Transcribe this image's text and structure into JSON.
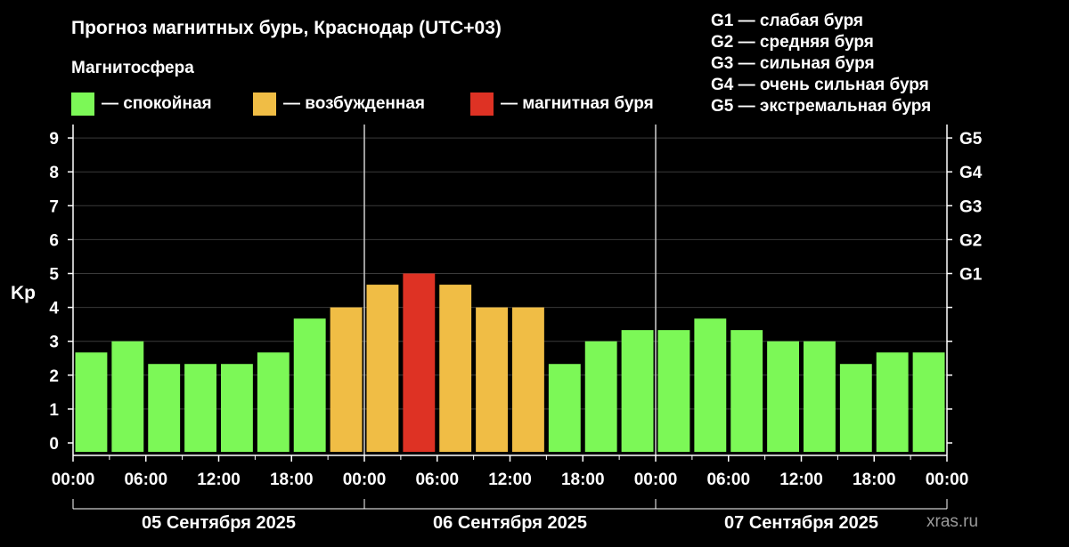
{
  "title": "Прогноз магнитных бурь, Краснодар (UTC+03)",
  "magnetosphere": {
    "title": "Магнитосфера",
    "legend": [
      {
        "label": "— спокойная",
        "color": "#7CF857"
      },
      {
        "label": "— возбужденная",
        "color": "#F0BD45"
      },
      {
        "label": "— магнитная буря",
        "color": "#DE3224"
      }
    ]
  },
  "storm_levels": [
    "G1 — слабая буря",
    "G2 — средняя буря",
    "G3 — сильная буря",
    "G4 — очень сильная буря",
    "G5 — экстремальная буря"
  ],
  "watermark": "xras.ru",
  "chart_data": {
    "type": "bar",
    "ylabel": "Kp",
    "ylim": [
      0,
      9
    ],
    "y_ticks": [
      "0",
      "1",
      "2",
      "3",
      "4",
      "5",
      "6",
      "7",
      "8",
      "9"
    ],
    "right_ticks": [
      {
        "label": "G1",
        "value": 5
      },
      {
        "label": "G2",
        "value": 6
      },
      {
        "label": "G3",
        "value": 7
      },
      {
        "label": "G4",
        "value": 8
      },
      {
        "label": "G5",
        "value": 9
      }
    ],
    "x_tick_labels": [
      "00:00",
      "06:00",
      "12:00",
      "18:00",
      "00:00",
      "06:00",
      "12:00",
      "18:00",
      "00:00",
      "06:00",
      "12:00",
      "18:00",
      "00:00"
    ],
    "days": [
      "05 Сентября 2025",
      "06 Сентября 2025",
      "07 Сентября 2025"
    ],
    "bar_interval_hours": 3,
    "values": [
      2.67,
      3.0,
      2.33,
      2.33,
      2.33,
      2.67,
      3.67,
      4.0,
      4.67,
      5.0,
      4.67,
      4.0,
      4.0,
      2.33,
      3.0,
      3.33,
      3.33,
      3.67,
      3.33,
      3.0,
      3.0,
      2.33,
      2.67,
      2.67
    ],
    "colors": {
      "quiet": "#7CF857",
      "active": "#F0BD45",
      "storm": "#DE3224"
    },
    "grid": true
  }
}
